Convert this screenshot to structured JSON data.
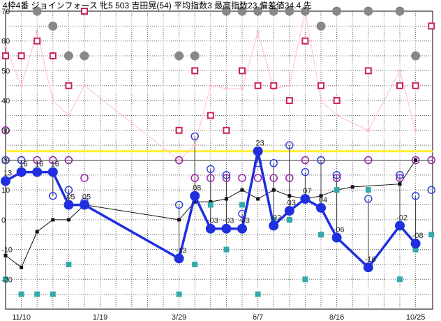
{
  "chart_data": {
    "type": "line",
    "title": "4枠4番 ジョインフォース 牝5 503 吉田晃(54) 平均指数3 最高指数23 偏差値34.4 先",
    "xlabel": "",
    "ylabel": "",
    "ylim": [
      -30,
      70
    ],
    "y_ticks": [
      70,
      60,
      50,
      40,
      30,
      20,
      10,
      0,
      -10,
      -20
    ],
    "x_count": 27,
    "x_tick_labels": [
      {
        "index": 1,
        "label": "11/10"
      },
      {
        "index": 6,
        "label": "1/19"
      },
      {
        "index": 11,
        "label": "3/29"
      },
      {
        "index": 16,
        "label": "6/7"
      },
      {
        "index": 21,
        "label": "8/16"
      },
      {
        "index": 26,
        "label": "10/25"
      }
    ],
    "grid": true,
    "reference_lines": [
      {
        "value": 23,
        "color": "#ffee33"
      },
      {
        "value": 20,
        "color": "#333333"
      }
    ],
    "colors": {
      "main": "#1f2fe0",
      "pink_line": "#ffc0cb",
      "black_line": "#111111",
      "gray_dot": "#888888",
      "red_square": "#cc2255",
      "teal_square": "#33aaaa",
      "purple_circle": "#9922aa",
      "blue_circle": "#3344dd",
      "highlight": "#ffee33"
    },
    "series": [
      {
        "role": "main",
        "points": [
          [
            0,
            13
          ],
          [
            1,
            16
          ],
          [
            2,
            16
          ],
          [
            3,
            16
          ],
          [
            4,
            5
          ],
          [
            5,
            5
          ],
          [
            11,
            -13
          ],
          [
            12,
            8
          ],
          [
            13,
            -3
          ],
          [
            14,
            -3
          ],
          [
            15,
            -3
          ],
          [
            16,
            23
          ],
          [
            17,
            -2
          ],
          [
            18,
            3
          ],
          [
            19,
            7
          ],
          [
            20,
            4
          ],
          [
            21,
            -6
          ],
          [
            23,
            -16
          ],
          [
            25,
            -2
          ],
          [
            26,
            -8
          ]
        ]
      },
      {
        "role": "black",
        "points": [
          [
            0,
            -12
          ],
          [
            1,
            -16
          ],
          [
            2,
            -4
          ],
          [
            3,
            0
          ],
          [
            4,
            0
          ],
          [
            5,
            5
          ],
          [
            11,
            0
          ],
          [
            12,
            6
          ],
          [
            13,
            6
          ],
          [
            14,
            7
          ],
          [
            15,
            10
          ],
          [
            16,
            7
          ],
          [
            17,
            10
          ],
          [
            18,
            8
          ],
          [
            19,
            7
          ],
          [
            20,
            8
          ],
          [
            21,
            10
          ],
          [
            22,
            11
          ],
          [
            25,
            12
          ],
          [
            26,
            20
          ]
        ]
      },
      {
        "role": "pink",
        "points": [
          [
            0,
            58
          ],
          [
            1,
            45
          ],
          [
            2,
            63
          ],
          [
            3,
            40
          ],
          [
            4,
            35
          ],
          [
            5,
            45
          ],
          [
            11,
            20
          ],
          [
            12,
            25
          ],
          [
            13,
            45
          ],
          [
            14,
            44
          ],
          [
            15,
            44
          ],
          [
            16,
            63
          ],
          [
            17,
            44
          ],
          [
            18,
            45
          ],
          [
            19,
            70
          ],
          [
            20,
            40
          ],
          [
            21,
            35
          ],
          [
            23,
            30
          ],
          [
            25,
            50
          ],
          [
            26,
            30
          ]
        ]
      },
      {
        "role": "gray_dots",
        "points": [
          [
            2,
            70
          ],
          [
            3,
            65
          ],
          [
            4,
            55
          ],
          [
            5,
            55
          ],
          [
            11,
            55
          ],
          [
            12,
            55
          ],
          [
            14,
            70
          ],
          [
            15,
            70
          ],
          [
            16,
            70
          ],
          [
            17,
            70
          ],
          [
            18,
            70
          ],
          [
            19,
            70
          ],
          [
            20,
            65
          ],
          [
            21,
            70
          ],
          [
            23,
            70
          ],
          [
            25,
            70
          ],
          [
            26,
            55
          ]
        ]
      },
      {
        "role": "red_squares",
        "points": [
          [
            0,
            55
          ],
          [
            1,
            55
          ],
          [
            2,
            60
          ],
          [
            3,
            55
          ],
          [
            4,
            45
          ],
          [
            5,
            70
          ],
          [
            11,
            30
          ],
          [
            12,
            50
          ],
          [
            13,
            35
          ],
          [
            14,
            30
          ],
          [
            15,
            50
          ],
          [
            16,
            45
          ],
          [
            17,
            45
          ],
          [
            18,
            40
          ],
          [
            19,
            60
          ],
          [
            20,
            45
          ],
          [
            21,
            40
          ],
          [
            23,
            50
          ],
          [
            25,
            45
          ],
          [
            26,
            45
          ],
          [
            27,
            65
          ]
        ]
      },
      {
        "role": "teal_squares",
        "points": [
          [
            0,
            -20
          ],
          [
            1,
            -25
          ],
          [
            2,
            -25
          ],
          [
            3,
            -25
          ],
          [
            4,
            -15
          ],
          [
            5,
            5
          ],
          [
            11,
            -25
          ],
          [
            12,
            -15
          ],
          [
            13,
            5
          ],
          [
            14,
            -10
          ],
          [
            15,
            5
          ],
          [
            16,
            -25
          ],
          [
            17,
            0
          ],
          [
            18,
            0
          ],
          [
            19,
            -20
          ],
          [
            20,
            -5
          ],
          [
            21,
            10
          ],
          [
            23,
            10
          ],
          [
            25,
            -20
          ],
          [
            26,
            -10
          ],
          [
            27,
            -5
          ]
        ]
      },
      {
        "role": "purple_circles",
        "points": [
          [
            0,
            30
          ],
          [
            1,
            20
          ],
          [
            2,
            20
          ],
          [
            3,
            20
          ],
          [
            4,
            20
          ],
          [
            5,
            14
          ],
          [
            11,
            20
          ],
          [
            12,
            14
          ],
          [
            13,
            14
          ],
          [
            14,
            14
          ],
          [
            15,
            14
          ],
          [
            16,
            14
          ],
          [
            17,
            14
          ],
          [
            18,
            14
          ],
          [
            19,
            20
          ],
          [
            20,
            20
          ],
          [
            21,
            14
          ],
          [
            23,
            20
          ],
          [
            25,
            14
          ],
          [
            26,
            20
          ],
          [
            27,
            20
          ]
        ]
      },
      {
        "role": "blue_circles",
        "points": [
          [
            0,
            20
          ],
          [
            1,
            20
          ],
          [
            3,
            8
          ],
          [
            4,
            10
          ],
          [
            5,
            6
          ],
          [
            11,
            5
          ],
          [
            12,
            28
          ],
          [
            13,
            17
          ],
          [
            14,
            15
          ],
          [
            15,
            2
          ],
          [
            16,
            19
          ],
          [
            17,
            19
          ],
          [
            18,
            25
          ],
          [
            19,
            16
          ],
          [
            20,
            20
          ],
          [
            21,
            15
          ],
          [
            23,
            7
          ],
          [
            25,
            15
          ],
          [
            26,
            8
          ],
          [
            27,
            10
          ]
        ]
      }
    ],
    "data_labels": [
      {
        "index": 0,
        "value": 13,
        "label": "13"
      },
      {
        "index": 1,
        "value": 16,
        "label": "16"
      },
      {
        "index": 2,
        "value": 16,
        "label": "16"
      },
      {
        "index": 3,
        "value": 16,
        "label": "16"
      },
      {
        "index": 4,
        "value": 5,
        "label": "05"
      },
      {
        "index": 5,
        "value": 5,
        "label": "05"
      },
      {
        "index": 11,
        "value": -13,
        "label": "-13"
      },
      {
        "index": 12,
        "value": 8,
        "label": "08"
      },
      {
        "index": 13,
        "value": -3,
        "label": "-03"
      },
      {
        "index": 14,
        "value": -3,
        "label": "-03"
      },
      {
        "index": 15,
        "value": -3,
        "label": "-03"
      },
      {
        "index": 16,
        "value": 23,
        "label": "23"
      },
      {
        "index": 17,
        "value": -2,
        "label": "-02"
      },
      {
        "index": 18,
        "value": 3,
        "label": "03"
      },
      {
        "index": 19,
        "value": 7,
        "label": "07"
      },
      {
        "index": 20,
        "value": 4,
        "label": "04"
      },
      {
        "index": 21,
        "value": -6,
        "label": "-06"
      },
      {
        "index": 23,
        "value": -16,
        "label": "-16"
      },
      {
        "index": 25,
        "value": -2,
        "label": "-02"
      },
      {
        "index": 26,
        "value": -8,
        "label": "-08"
      }
    ]
  }
}
